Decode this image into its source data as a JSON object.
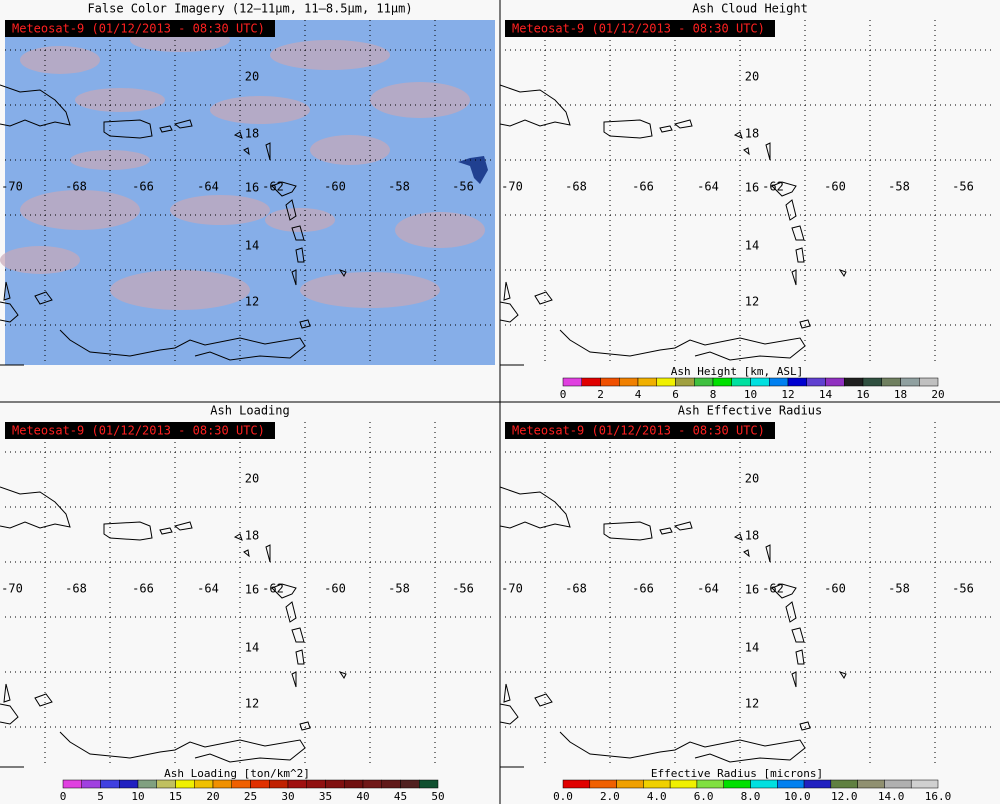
{
  "panels": [
    {
      "title": "False Color Imagery (12–11µm, 11–8.5µm, 11µm)",
      "stamp": "Meteosat-9  (01/12/2013 - 08:30 UTC)"
    },
    {
      "title": "Ash Cloud Height",
      "stamp": "Meteosat-9  (01/12/2013 - 08:30 UTC)",
      "colorbar": {
        "label": "Ash Height [km, ASL]",
        "ticks": [
          "0",
          "2",
          "4",
          "6",
          "8",
          "10",
          "12",
          "14",
          "16",
          "18",
          "20"
        ],
        "colors": [
          "#e040e0",
          "#e00000",
          "#f05000",
          "#f08000",
          "#f0b000",
          "#f0f000",
          "#a0a040",
          "#40c040",
          "#00e000",
          "#00e0a0",
          "#00e0e0",
          "#0080f0",
          "#0000d0",
          "#6040d0",
          "#9030c0",
          "#202020",
          "#305040",
          "#708060",
          "#90a0a0",
          "#c0c0c0"
        ]
      }
    },
    {
      "title": "Ash Loading",
      "stamp": "Meteosat-9  (01/12/2013 - 08:30 UTC)",
      "colorbar": {
        "label": "Ash Loading [ton/km^2]",
        "ticks": [
          "0",
          "5",
          "10",
          "15",
          "20",
          "25",
          "30",
          "35",
          "40",
          "45",
          "50"
        ],
        "colors": [
          "#e040e0",
          "#a040e0",
          "#4040e0",
          "#2020c0",
          "#80a080",
          "#c0c060",
          "#f0f000",
          "#f0c000",
          "#f09000",
          "#f06000",
          "#e03000",
          "#c02000",
          "#a01010",
          "#901010",
          "#801010",
          "#701010",
          "#701818",
          "#601818",
          "#502020",
          "#105030"
        ]
      }
    },
    {
      "title": "Ash Effective Radius",
      "stamp": "Meteosat-9  (01/12/2013 - 08:30 UTC)",
      "colorbar": {
        "label": "Effective Radius [microns]",
        "ticks": [
          "0.0",
          "2.0",
          "4.0",
          "6.0",
          "8.0",
          "10.0",
          "12.0",
          "14.0",
          "16.0"
        ],
        "colors": [
          "#e00000",
          "#f06000",
          "#f0a000",
          "#f0d000",
          "#f0f000",
          "#80e040",
          "#00e000",
          "#00e0e0",
          "#0080f0",
          "#2020c0",
          "#608040",
          "#909070",
          "#b0b0b0",
          "#d0d0d0"
        ]
      }
    }
  ],
  "lon_labels": [
    "-70",
    "-68",
    "-66",
    "-64",
    "-62",
    "-60",
    "-58",
    "-56"
  ],
  "lat_labels": [
    "20",
    "18",
    "16",
    "14",
    "12"
  ]
}
